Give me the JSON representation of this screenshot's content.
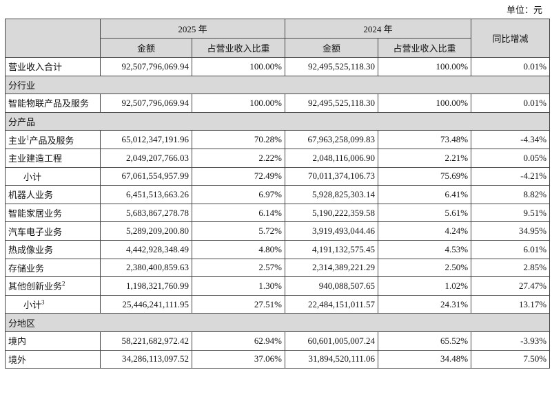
{
  "unit": "单位：元",
  "header": {
    "row1": [
      "2025 年",
      "2024 年",
      "同比增减"
    ],
    "row2": [
      "金额",
      "占营业收入比重",
      "金额",
      "占营业收入比重"
    ]
  },
  "rows": [
    {
      "label": "营业收入合计",
      "cells": [
        "92,507,796,069.94",
        "100.00%",
        "92,495,525,118.30",
        "100.00%",
        "0.01%"
      ]
    },
    {
      "section": "分行业"
    },
    {
      "label": "智能物联产品及服务",
      "cells": [
        "92,507,796,069.94",
        "100.00%",
        "92,495,525,118.30",
        "100.00%",
        "0.01%"
      ]
    },
    {
      "section": "分产品"
    },
    {
      "label": "主业",
      "note": "1",
      "label_after": "产品及服务",
      "cells": [
        "65,012,347,191.96",
        "70.28%",
        "67,963,258,099.83",
        "73.48%",
        "-4.34%"
      ]
    },
    {
      "label": "主业建造工程",
      "cells": [
        "2,049,207,766.03",
        "2.22%",
        "2,048,116,006.90",
        "2.21%",
        "0.05%"
      ]
    },
    {
      "label": "小计",
      "indent": true,
      "cells": [
        "67,061,554,957.99",
        "72.49%",
        "70,011,374,106.73",
        "75.69%",
        "-4.21%"
      ]
    },
    {
      "label": "机器人业务",
      "cells": [
        "6,451,513,663.26",
        "6.97%",
        "5,928,825,303.14",
        "6.41%",
        "8.82%"
      ]
    },
    {
      "label": "智能家居业务",
      "cells": [
        "5,683,867,278.78",
        "6.14%",
        "5,190,222,359.58",
        "5.61%",
        "9.51%"
      ]
    },
    {
      "label": "汽车电子业务",
      "cells": [
        "5,289,209,200.80",
        "5.72%",
        "3,919,493,044.46",
        "4.24%",
        "34.95%"
      ]
    },
    {
      "label": "热成像业务",
      "cells": [
        "4,442,928,348.49",
        "4.80%",
        "4,191,132,575.45",
        "4.53%",
        "6.01%"
      ]
    },
    {
      "label": "存储业务",
      "cells": [
        "2,380,400,859.63",
        "2.57%",
        "2,314,389,221.29",
        "2.50%",
        "2.85%"
      ]
    },
    {
      "label": "其他创新业务",
      "note": "2",
      "cells": [
        "1,198,321,760.99",
        "1.30%",
        "940,088,507.65",
        "1.02%",
        "27.47%"
      ]
    },
    {
      "label": "小计",
      "note": "3",
      "indent": true,
      "cells": [
        "25,446,241,111.95",
        "27.51%",
        "22,484,151,011.57",
        "24.31%",
        "13.17%"
      ]
    },
    {
      "section": "分地区"
    },
    {
      "label": "境内",
      "cells": [
        "58,221,682,972.42",
        "62.94%",
        "60,601,005,007.24",
        "65.52%",
        "-3.93%"
      ]
    },
    {
      "label": "境外",
      "cells": [
        "34,286,113,097.52",
        "37.06%",
        "31,894,520,111.06",
        "34.48%",
        "7.50%"
      ]
    }
  ]
}
